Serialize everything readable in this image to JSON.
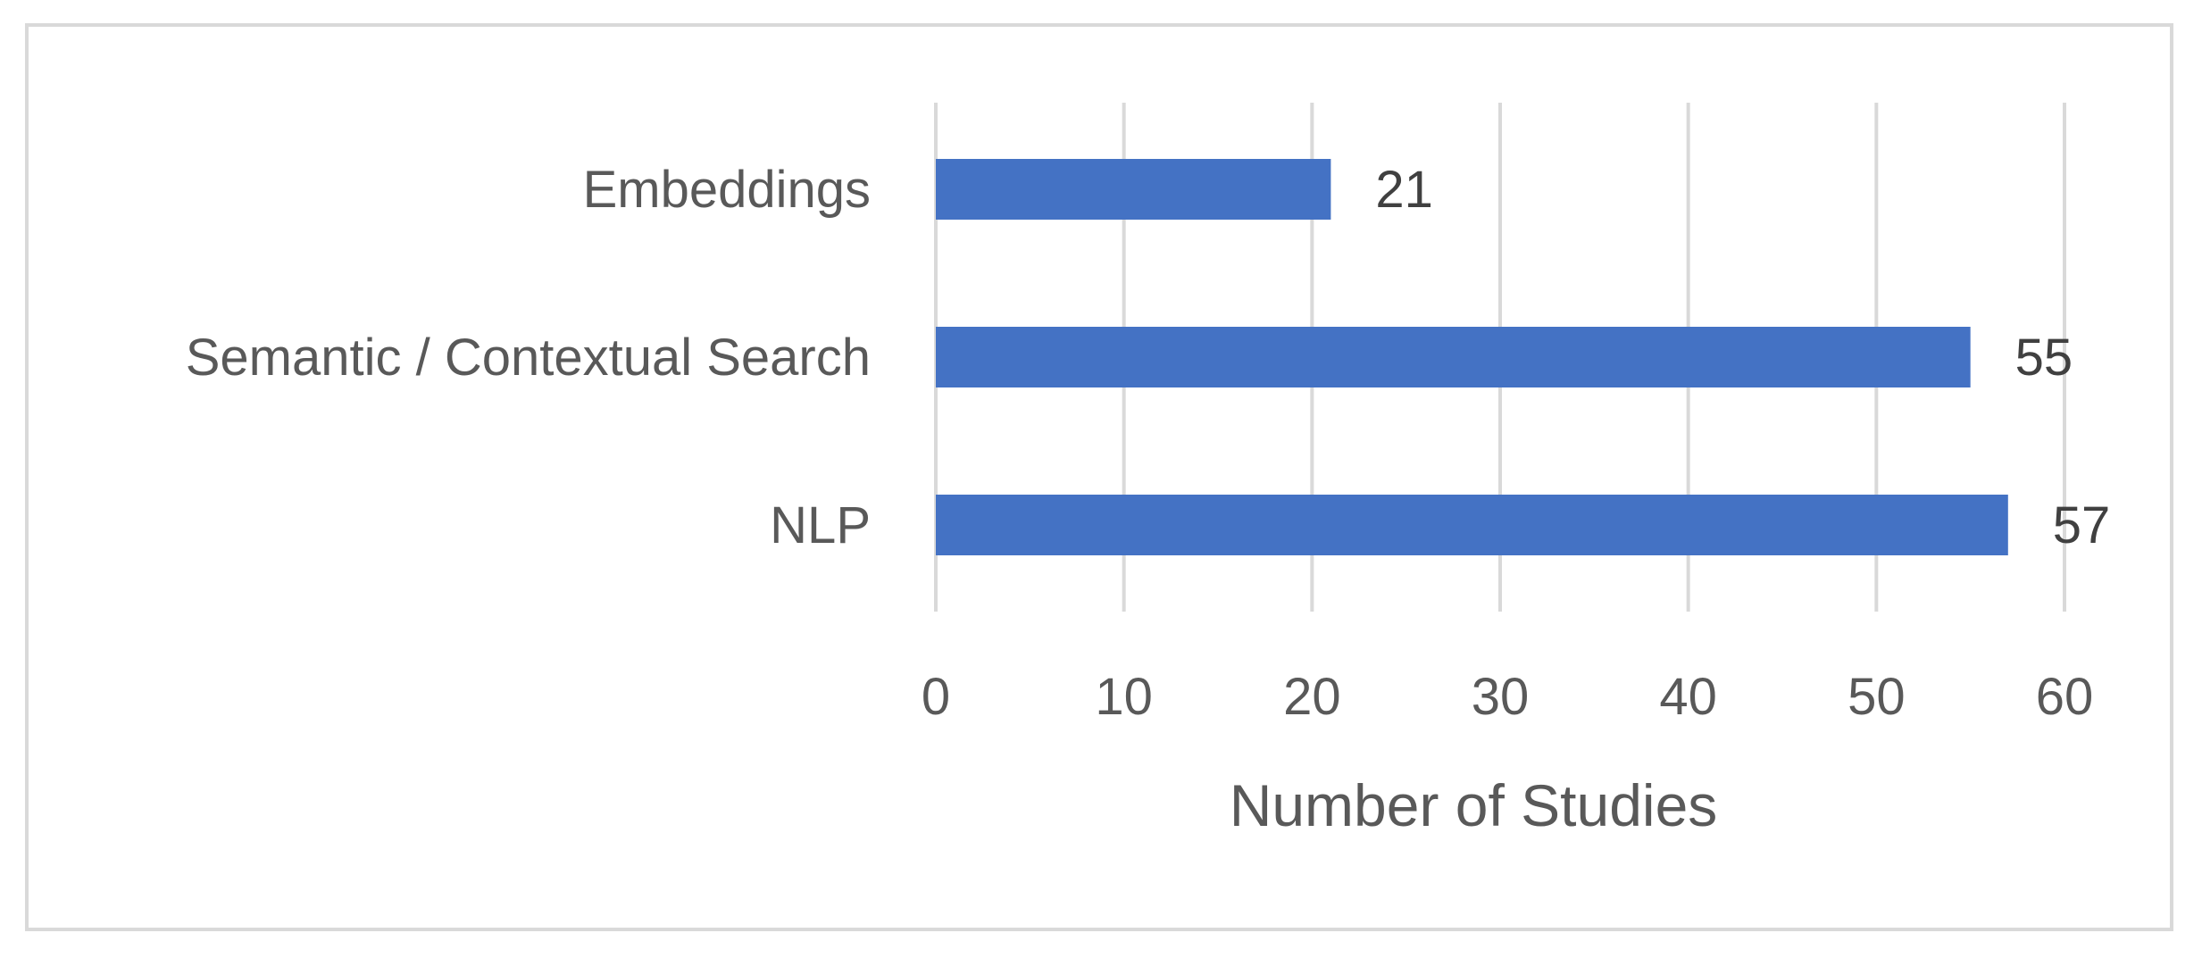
{
  "chart_data": {
    "type": "bar",
    "orientation": "horizontal",
    "categories": [
      "Embeddings",
      "Semantic / Contextual Search",
      "NLP"
    ],
    "values": [
      21,
      55,
      57
    ],
    "title": "",
    "xlabel": "Number of Studies",
    "ylabel": "",
    "xlim": [
      0,
      60
    ],
    "xticks": [
      0,
      10,
      20,
      30,
      40,
      50,
      60
    ],
    "grid": "vertical",
    "legend": "none",
    "bar_color": "#4472C4",
    "grid_color": "#d9d9d9",
    "data_labels": true
  }
}
